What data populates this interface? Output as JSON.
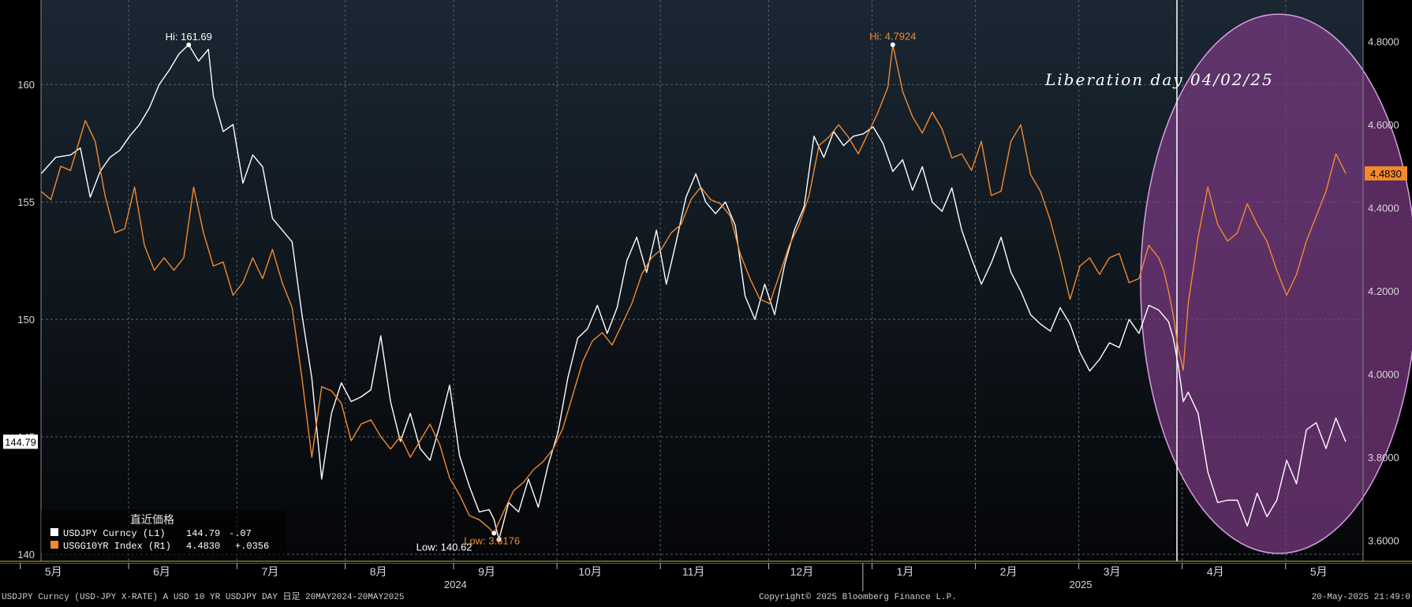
{
  "colors": {
    "background": "#000000",
    "plot_background_top": "#1a2733",
    "plot_background_bottom": "#050608",
    "grid": "#5a5f66",
    "usdjpy_line": "#ffffff",
    "yield_line": "#f28a2e",
    "highlight_fill": "#7a3a82",
    "highlight_stroke": "#d6a0e0",
    "marker_line": "#ffffff",
    "axis_text": "#d9d9d9",
    "footer_text": "#cfcfcf"
  },
  "chart_data": {
    "type": "line",
    "dual_axis": true,
    "left_axis": {
      "ticks": [
        140,
        145,
        150,
        155,
        160
      ],
      "tick_labels": [
        "140",
        "145",
        "150",
        "155",
        "160"
      ],
      "range": [
        139.7,
        163.6
      ]
    },
    "right_axis": {
      "ticks": [
        3.6,
        3.8,
        4.0,
        4.2,
        4.4,
        4.6,
        4.8
      ],
      "tick_labels": [
        "3.6000",
        "3.8000",
        "4.0000",
        "4.2000",
        "4.4000",
        "4.6000",
        "4.8000"
      ],
      "range": [
        3.55,
        4.9
      ]
    },
    "x_axis": {
      "start_index": 0,
      "end_index": 260,
      "month_ticks": [
        {
          "label": "5月",
          "index": 3
        },
        {
          "label": "6月",
          "index": 25
        },
        {
          "label": "7月",
          "index": 47
        },
        {
          "label": "8月",
          "index": 69
        },
        {
          "label": "9月",
          "index": 91
        },
        {
          "label": "10月",
          "index": 112
        },
        {
          "label": "11月",
          "index": 133
        },
        {
          "label": "12月",
          "index": 155
        },
        {
          "label": "1月",
          "index": 176
        },
        {
          "label": "2月",
          "index": 197
        },
        {
          "label": "3月",
          "index": 218
        },
        {
          "label": "4月",
          "index": 239
        },
        {
          "label": "5月",
          "index": 260
        }
      ],
      "year_labels": [
        {
          "label": "2024",
          "index": 80
        },
        {
          "label": "2025",
          "index": 207
        }
      ],
      "year_divider_index": 165
    },
    "series": [
      {
        "name": "USDJPY Curncy (L1)",
        "axis": "left",
        "points": [
          [
            0,
            156.2
          ],
          [
            3,
            156.9
          ],
          [
            6,
            157.0
          ],
          [
            8,
            157.3
          ],
          [
            10,
            155.2
          ],
          [
            12,
            156.3
          ],
          [
            14,
            156.9
          ],
          [
            16,
            157.2
          ],
          [
            18,
            157.8
          ],
          [
            20,
            158.3
          ],
          [
            22,
            159.0
          ],
          [
            24,
            160.0
          ],
          [
            26,
            160.6
          ],
          [
            28,
            161.3
          ],
          [
            30,
            161.7
          ],
          [
            32,
            161.0
          ],
          [
            34,
            161.5
          ],
          [
            35,
            159.5
          ],
          [
            37,
            158.0
          ],
          [
            39,
            158.3
          ],
          [
            41,
            155.8
          ],
          [
            43,
            157.0
          ],
          [
            45,
            156.5
          ],
          [
            47,
            154.3
          ],
          [
            49,
            153.8
          ],
          [
            51,
            153.3
          ],
          [
            53,
            150.2
          ],
          [
            55,
            147.5
          ],
          [
            57,
            143.2
          ],
          [
            59,
            146.0
          ],
          [
            61,
            147.3
          ],
          [
            63,
            146.5
          ],
          [
            65,
            146.7
          ],
          [
            67,
            147.0
          ],
          [
            69,
            149.3
          ],
          [
            71,
            146.5
          ],
          [
            73,
            144.8
          ],
          [
            75,
            146.0
          ],
          [
            77,
            144.5
          ],
          [
            79,
            144.0
          ],
          [
            81,
            145.5
          ],
          [
            83,
            147.2
          ],
          [
            85,
            144.2
          ],
          [
            87,
            142.9
          ],
          [
            89,
            141.8
          ],
          [
            91,
            141.9
          ],
          [
            92,
            141.5
          ],
          [
            93,
            140.62
          ],
          [
            95,
            142.2
          ],
          [
            97,
            141.8
          ],
          [
            99,
            143.2
          ],
          [
            101,
            142.0
          ],
          [
            103,
            143.8
          ],
          [
            105,
            145.2
          ],
          [
            107,
            147.5
          ],
          [
            109,
            149.2
          ],
          [
            111,
            149.6
          ],
          [
            113,
            150.6
          ],
          [
            115,
            149.4
          ],
          [
            117,
            150.5
          ],
          [
            119,
            152.5
          ],
          [
            121,
            153.5
          ],
          [
            123,
            152.0
          ],
          [
            125,
            153.8
          ],
          [
            127,
            151.5
          ],
          [
            129,
            153.3
          ],
          [
            131,
            155.2
          ],
          [
            133,
            156.2
          ],
          [
            135,
            155.0
          ],
          [
            137,
            154.5
          ],
          [
            139,
            155.0
          ],
          [
            141,
            154.0
          ],
          [
            143,
            151.0
          ],
          [
            145,
            150.0
          ],
          [
            147,
            151.5
          ],
          [
            149,
            150.2
          ],
          [
            151,
            152.3
          ],
          [
            153,
            153.8
          ],
          [
            155,
            154.8
          ],
          [
            157,
            157.8
          ],
          [
            159,
            156.9
          ],
          [
            161,
            158.0
          ],
          [
            163,
            157.4
          ],
          [
            165,
            157.8
          ],
          [
            167,
            157.9
          ],
          [
            169,
            158.2
          ],
          [
            171,
            157.5
          ],
          [
            173,
            156.3
          ],
          [
            175,
            156.8
          ],
          [
            177,
            155.5
          ],
          [
            179,
            156.5
          ],
          [
            181,
            155.0
          ],
          [
            183,
            154.6
          ],
          [
            185,
            155.6
          ],
          [
            187,
            153.8
          ],
          [
            189,
            152.6
          ],
          [
            191,
            151.5
          ],
          [
            193,
            152.4
          ],
          [
            195,
            153.5
          ],
          [
            197,
            152.0
          ],
          [
            199,
            151.2
          ],
          [
            201,
            150.2
          ],
          [
            203,
            149.8
          ],
          [
            205,
            149.5
          ],
          [
            207,
            150.5
          ],
          [
            209,
            149.8
          ],
          [
            211,
            148.6
          ],
          [
            213,
            147.8
          ],
          [
            215,
            148.3
          ],
          [
            217,
            149.0
          ],
          [
            219,
            148.8
          ],
          [
            221,
            150.0
          ],
          [
            223,
            149.4
          ],
          [
            225,
            150.6
          ],
          [
            227,
            150.4
          ],
          [
            229,
            149.9
          ],
          [
            230,
            149.2
          ],
          [
            231,
            148.0
          ],
          [
            232,
            146.5
          ],
          [
            233,
            146.9
          ],
          [
            235,
            146.0
          ],
          [
            237,
            143.5
          ],
          [
            239,
            142.2
          ],
          [
            241,
            142.3
          ],
          [
            243,
            142.3
          ],
          [
            245,
            141.2
          ],
          [
            247,
            142.6
          ],
          [
            249,
            141.6
          ],
          [
            251,
            142.3
          ],
          [
            253,
            144.0
          ],
          [
            255,
            143.0
          ],
          [
            257,
            145.3
          ],
          [
            259,
            145.6
          ],
          [
            261,
            144.5
          ],
          [
            263,
            145.8
          ],
          [
            265,
            144.79
          ]
        ]
      },
      {
        "name": "USGG10YR Index (R1)",
        "axis": "right",
        "points": [
          [
            0,
            4.44
          ],
          [
            2,
            4.42
          ],
          [
            4,
            4.5
          ],
          [
            6,
            4.49
          ],
          [
            8,
            4.57
          ],
          [
            9,
            4.61
          ],
          [
            11,
            4.56
          ],
          [
            13,
            4.43
          ],
          [
            15,
            4.34
          ],
          [
            17,
            4.35
          ],
          [
            19,
            4.45
          ],
          [
            21,
            4.31
          ],
          [
            23,
            4.25
          ],
          [
            25,
            4.28
          ],
          [
            27,
            4.25
          ],
          [
            29,
            4.28
          ],
          [
            31,
            4.45
          ],
          [
            33,
            4.34
          ],
          [
            35,
            4.26
          ],
          [
            37,
            4.27
          ],
          [
            39,
            4.19
          ],
          [
            41,
            4.22
          ],
          [
            43,
            4.28
          ],
          [
            45,
            4.23
          ],
          [
            47,
            4.3
          ],
          [
            49,
            4.22
          ],
          [
            51,
            4.16
          ],
          [
            53,
            3.99
          ],
          [
            55,
            3.8
          ],
          [
            57,
            3.97
          ],
          [
            59,
            3.96
          ],
          [
            61,
            3.93
          ],
          [
            63,
            3.84
          ],
          [
            65,
            3.88
          ],
          [
            67,
            3.89
          ],
          [
            69,
            3.85
          ],
          [
            71,
            3.82
          ],
          [
            73,
            3.85
          ],
          [
            75,
            3.8
          ],
          [
            77,
            3.84
          ],
          [
            79,
            3.88
          ],
          [
            81,
            3.83
          ],
          [
            83,
            3.75
          ],
          [
            85,
            3.71
          ],
          [
            87,
            3.66
          ],
          [
            89,
            3.65
          ],
          [
            91,
            3.63
          ],
          [
            92,
            3.6176
          ],
          [
            94,
            3.67
          ],
          [
            96,
            3.72
          ],
          [
            98,
            3.74
          ],
          [
            100,
            3.77
          ],
          [
            102,
            3.79
          ],
          [
            104,
            3.82
          ],
          [
            106,
            3.87
          ],
          [
            108,
            3.95
          ],
          [
            110,
            4.03
          ],
          [
            112,
            4.08
          ],
          [
            114,
            4.1
          ],
          [
            116,
            4.07
          ],
          [
            118,
            4.12
          ],
          [
            120,
            4.17
          ],
          [
            122,
            4.24
          ],
          [
            124,
            4.28
          ],
          [
            126,
            4.3
          ],
          [
            128,
            4.34
          ],
          [
            130,
            4.36
          ],
          [
            132,
            4.42
          ],
          [
            134,
            4.45
          ],
          [
            136,
            4.42
          ],
          [
            138,
            4.41
          ],
          [
            140,
            4.38
          ],
          [
            142,
            4.29
          ],
          [
            144,
            4.23
          ],
          [
            146,
            4.18
          ],
          [
            148,
            4.17
          ],
          [
            150,
            4.24
          ],
          [
            152,
            4.31
          ],
          [
            154,
            4.36
          ],
          [
            156,
            4.43
          ],
          [
            158,
            4.55
          ],
          [
            160,
            4.57
          ],
          [
            162,
            4.6
          ],
          [
            164,
            4.57
          ],
          [
            166,
            4.53
          ],
          [
            168,
            4.58
          ],
          [
            170,
            4.63
          ],
          [
            172,
            4.69
          ],
          [
            173,
            4.7924
          ],
          [
            175,
            4.68
          ],
          [
            177,
            4.62
          ],
          [
            179,
            4.58
          ],
          [
            181,
            4.63
          ],
          [
            183,
            4.59
          ],
          [
            185,
            4.52
          ],
          [
            187,
            4.53
          ],
          [
            189,
            4.49
          ],
          [
            191,
            4.56
          ],
          [
            193,
            4.43
          ],
          [
            195,
            4.44
          ],
          [
            197,
            4.56
          ],
          [
            199,
            4.6
          ],
          [
            201,
            4.48
          ],
          [
            203,
            4.44
          ],
          [
            205,
            4.37
          ],
          [
            207,
            4.28
          ],
          [
            209,
            4.18
          ],
          [
            211,
            4.26
          ],
          [
            213,
            4.28
          ],
          [
            215,
            4.24
          ],
          [
            217,
            4.28
          ],
          [
            219,
            4.29
          ],
          [
            221,
            4.22
          ],
          [
            223,
            4.23
          ],
          [
            225,
            4.31
          ],
          [
            227,
            4.28
          ],
          [
            228,
            4.25
          ],
          [
            229,
            4.2
          ],
          [
            230,
            4.14
          ],
          [
            231,
            4.06
          ],
          [
            232,
            4.01
          ],
          [
            233,
            4.17
          ],
          [
            235,
            4.33
          ],
          [
            237,
            4.45
          ],
          [
            239,
            4.36
          ],
          [
            241,
            4.32
          ],
          [
            243,
            4.34
          ],
          [
            245,
            4.41
          ],
          [
            247,
            4.36
          ],
          [
            249,
            4.32
          ],
          [
            251,
            4.25
          ],
          [
            253,
            4.19
          ],
          [
            255,
            4.24
          ],
          [
            257,
            4.32
          ],
          [
            259,
            4.38
          ],
          [
            261,
            4.44
          ],
          [
            263,
            4.53
          ],
          [
            265,
            4.483
          ]
        ]
      }
    ],
    "annotations": {
      "usdjpy_high": {
        "label": "Hi: 161.69",
        "index": 30,
        "value": 161.69
      },
      "usdjpy_low": {
        "label": "Low: 140.62",
        "index": 93,
        "value": 140.62
      },
      "yield_high": {
        "label": "Hi: 4.7924",
        "index": 173,
        "value": 4.7924
      },
      "yield_low": {
        "label": "Low: 3.6176",
        "index": 92,
        "value": 3.6176
      },
      "event_label": "Liberation day 04/02/25",
      "event_index": 230,
      "last_left_label": "144.79",
      "last_right_label": "4.4830"
    },
    "legend": {
      "title": "直近価格",
      "items": [
        {
          "name": "USDJPY Curncy (L1)",
          "last": "144.79",
          "change": "-.07"
        },
        {
          "name": "USGG10YR Index (R1)",
          "last": "4.4830",
          "change": "+.0356"
        }
      ]
    }
  },
  "footer": {
    "left": "USDJPY Curncy (USD-JPY X-RATE) A USD 10 YR  USDJPY DAY  日足 20MAY2024-20MAY2025",
    "center": "Copyright© 2025 Bloomberg Finance L.P.",
    "right": "20-May-2025 21:49:0"
  }
}
